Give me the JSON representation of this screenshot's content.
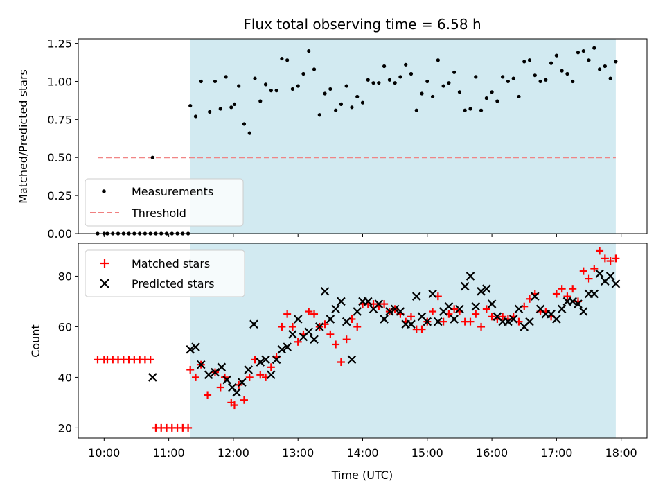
{
  "chart_data": [
    {
      "type": "scatter",
      "title": "Flux total observing time = 6.58 h",
      "ylabel": "Matched/Predicted stars",
      "ylim": [
        0,
        1.28
      ],
      "yticks": [
        "0.00",
        "0.25",
        "0.50",
        "0.75",
        "1.00",
        "1.25"
      ],
      "xlim": [
        "09:36",
        "18:24"
      ],
      "shaded_region": {
        "start": "11:20",
        "end": "17:55",
        "color": "#add8e6"
      },
      "grid": false,
      "legend_position": "lower-left",
      "threshold": {
        "name": "Threshold",
        "value": 0.5,
        "start": "09:54",
        "end": "17:55",
        "color": "#f08080",
        "style": "dashed"
      },
      "measurements": {
        "name": "Measurements",
        "color": "#000000",
        "x": [
          "09:54",
          "10:00",
          "10:03",
          "10:08",
          "10:13",
          "10:18",
          "10:23",
          "10:28",
          "10:33",
          "10:38",
          "10:43",
          "10:48",
          "10:53",
          "10:58",
          "11:03",
          "11:08",
          "11:13",
          "11:18",
          "10:45",
          "11:20",
          "11:25",
          "11:30",
          "11:38",
          "11:43",
          "11:48",
          "11:53",
          "11:58",
          "12:01",
          "12:05",
          "12:10",
          "12:15",
          "12:20",
          "12:25",
          "12:30",
          "12:35",
          "12:40",
          "12:45",
          "12:50",
          "12:55",
          "13:00",
          "13:05",
          "13:10",
          "13:15",
          "13:20",
          "13:25",
          "13:30",
          "13:35",
          "13:40",
          "13:45",
          "13:50",
          "13:55",
          "14:00",
          "14:05",
          "14:10",
          "14:15",
          "14:20",
          "14:25",
          "14:30",
          "14:35",
          "14:40",
          "14:45",
          "14:50",
          "14:55",
          "15:00",
          "15:05",
          "15:10",
          "15:15",
          "15:20",
          "15:25",
          "15:30",
          "15:35",
          "15:40",
          "15:45",
          "15:50",
          "15:55",
          "16:00",
          "16:05",
          "16:10",
          "16:15",
          "16:20",
          "16:25",
          "16:30",
          "16:35",
          "16:40",
          "16:45",
          "16:50",
          "16:55",
          "17:00",
          "17:05",
          "17:10",
          "17:15",
          "17:20",
          "17:25",
          "17:30",
          "17:35",
          "17:40",
          "17:45",
          "17:50",
          "17:55"
        ],
        "y": [
          0,
          0,
          0,
          0,
          0,
          0,
          0,
          0,
          0,
          0,
          0,
          0,
          0,
          0,
          0,
          0,
          0,
          0,
          0.5,
          0.84,
          0.77,
          1.0,
          0.8,
          1.0,
          0.82,
          1.03,
          0.83,
          0.85,
          0.97,
          0.72,
          0.66,
          1.02,
          0.87,
          0.98,
          0.94,
          0.94,
          1.15,
          1.14,
          0.95,
          0.97,
          1.05,
          1.2,
          1.08,
          0.78,
          0.92,
          0.95,
          0.81,
          0.85,
          0.97,
          0.83,
          0.9,
          0.86,
          1.01,
          0.99,
          0.99,
          1.1,
          1.01,
          0.99,
          1.03,
          1.11,
          1.05,
          0.81,
          0.92,
          1.0,
          0.9,
          1.14,
          0.97,
          0.99,
          1.06,
          0.93,
          0.81,
          0.82,
          1.03,
          0.81,
          0.89,
          0.93,
          0.87,
          1.03,
          1.0,
          1.02,
          0.9,
          1.13,
          1.14,
          1.04,
          1.0,
          1.01,
          1.12,
          1.17,
          1.07,
          1.05,
          1.0,
          1.19,
          1.2,
          1.14,
          1.22,
          1.08,
          1.1,
          1.02,
          1.13
        ]
      }
    },
    {
      "type": "scatter",
      "xlabel": "Time (UTC)",
      "ylabel": "Count",
      "ylim": [
        16,
        93
      ],
      "yticks": [
        "20",
        "40",
        "60",
        "80"
      ],
      "xlim": [
        "09:36",
        "18:24"
      ],
      "xticks": [
        "10:00",
        "11:00",
        "12:00",
        "13:00",
        "14:00",
        "15:00",
        "16:00",
        "17:00",
        "18:00"
      ],
      "shaded_region": {
        "start": "11:20",
        "end": "17:55",
        "color": "#add8e6"
      },
      "grid": false,
      "legend_position": "top-left",
      "series": [
        {
          "name": "Matched stars",
          "marker": "plus",
          "color": "#ff0000",
          "x": [
            "09:54",
            "10:00",
            "10:03",
            "10:08",
            "10:13",
            "10:18",
            "10:23",
            "10:28",
            "10:33",
            "10:38",
            "10:43",
            "10:48",
            "10:53",
            "10:58",
            "11:03",
            "11:08",
            "11:13",
            "11:18",
            "11:20",
            "11:25",
            "11:30",
            "11:36",
            "11:43",
            "11:48",
            "11:52",
            "11:58",
            "12:01",
            "12:05",
            "12:10",
            "12:15",
            "12:20",
            "12:25",
            "12:30",
            "12:35",
            "12:40",
            "12:45",
            "12:50",
            "12:55",
            "13:00",
            "13:05",
            "13:10",
            "13:15",
            "13:20",
            "13:25",
            "13:30",
            "13:35",
            "13:40",
            "13:45",
            "13:50",
            "13:55",
            "14:00",
            "14:05",
            "14:10",
            "14:15",
            "14:20",
            "14:25",
            "14:30",
            "14:35",
            "14:40",
            "14:45",
            "14:50",
            "14:55",
            "15:00",
            "15:05",
            "15:10",
            "15:15",
            "15:20",
            "15:25",
            "15:30",
            "15:35",
            "15:40",
            "15:45",
            "15:50",
            "15:55",
            "16:00",
            "16:05",
            "16:10",
            "16:15",
            "16:20",
            "16:25",
            "16:30",
            "16:35",
            "16:40",
            "16:45",
            "16:50",
            "16:55",
            "17:00",
            "17:05",
            "17:10",
            "17:15",
            "17:20",
            "17:25",
            "17:30",
            "17:35",
            "17:40",
            "17:45",
            "17:50",
            "17:55"
          ],
          "y": [
            47,
            47,
            47,
            47,
            47,
            47,
            47,
            47,
            47,
            47,
            47,
            20,
            20,
            20,
            20,
            20,
            20,
            20,
            43,
            40,
            45,
            33,
            42,
            36,
            40,
            30,
            29,
            37,
            31,
            40,
            47,
            41,
            40,
            44,
            48,
            60,
            65,
            60,
            54,
            57,
            66,
            65,
            60,
            61,
            57,
            53,
            46,
            55,
            63,
            60,
            69,
            69,
            69,
            68,
            69,
            66,
            67,
            65,
            62,
            64,
            59,
            59,
            62,
            66,
            72,
            62,
            65,
            67,
            66,
            62,
            62,
            65,
            60,
            67,
            64,
            63,
            64,
            63,
            64,
            62,
            68,
            71,
            73,
            66,
            66,
            64,
            73,
            75,
            72,
            75,
            70,
            82,
            79,
            83,
            90,
            87,
            86,
            87
          ]
        },
        {
          "name": "Predicted stars",
          "marker": "cross",
          "color": "#000000",
          "x": [
            "10:45",
            "11:20",
            "11:25",
            "11:30",
            "11:37",
            "11:43",
            "11:49",
            "11:54",
            "11:59",
            "12:03",
            "12:08",
            "12:14",
            "12:19",
            "12:25",
            "12:30",
            "12:35",
            "12:40",
            "12:45",
            "12:50",
            "12:55",
            "13:00",
            "13:05",
            "13:10",
            "13:15",
            "13:20",
            "13:25",
            "13:30",
            "13:35",
            "13:40",
            "13:45",
            "13:50",
            "13:55",
            "14:00",
            "14:05",
            "14:10",
            "14:15",
            "14:20",
            "14:25",
            "14:30",
            "14:35",
            "14:40",
            "14:45",
            "14:50",
            "14:55",
            "15:00",
            "15:05",
            "15:10",
            "15:15",
            "15:20",
            "15:25",
            "15:30",
            "15:35",
            "15:40",
            "15:45",
            "15:50",
            "15:55",
            "16:00",
            "16:05",
            "16:10",
            "16:15",
            "16:20",
            "16:25",
            "16:30",
            "16:35",
            "16:40",
            "16:45",
            "16:50",
            "16:55",
            "17:00",
            "17:05",
            "17:10",
            "17:15",
            "17:20",
            "17:25",
            "17:30",
            "17:35",
            "17:40",
            "17:45",
            "17:50",
            "17:55"
          ],
          "y": [
            40,
            51,
            52,
            45,
            41,
            42,
            44,
            39,
            36,
            34,
            38,
            43,
            61,
            46,
            47,
            41,
            47,
            51,
            52,
            57,
            63,
            56,
            58,
            55,
            60,
            74,
            63,
            67,
            70,
            62,
            47,
            66,
            70,
            70,
            67,
            69,
            63,
            66,
            67,
            66,
            61,
            61,
            72,
            64,
            62,
            73,
            62,
            66,
            68,
            63,
            67,
            76,
            80,
            68,
            74,
            75,
            69,
            64,
            62,
            62,
            63,
            67,
            60,
            62,
            72,
            67,
            65,
            65,
            63,
            67,
            70,
            70,
            69,
            66,
            73,
            73,
            81,
            78,
            80,
            77
          ]
        }
      ]
    }
  ]
}
